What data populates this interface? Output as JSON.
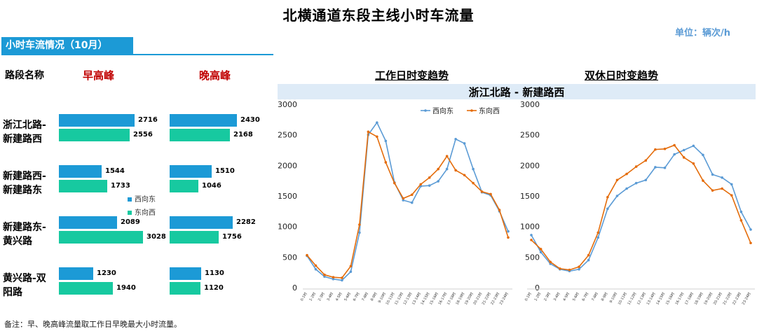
{
  "title": "北横通道东段主线小时车流量",
  "unit": "单位：辆次/h",
  "section_label": "小时车流情况（10月）",
  "table": {
    "col_road": "路段名称",
    "col_am": "早高峰",
    "col_pm": "晚高峰",
    "segments": [
      {
        "name_line1": "浙江北路-",
        "name_line2": "新建路西",
        "am_west": 2716,
        "am_east": 2556,
        "pm_west": 2430,
        "pm_east": 2168
      },
      {
        "name_line1": "新建路西-",
        "name_line2": "新建路东",
        "am_west": 1544,
        "am_east": 1733,
        "pm_west": 1510,
        "pm_east": 1046
      },
      {
        "name_line1": "新建路东-",
        "name_line2": "黄兴路",
        "am_west": 2089,
        "am_east": 3028,
        "pm_west": 2282,
        "pm_east": 1756
      },
      {
        "name_line1": "黄兴路-双",
        "name_line2": "阳路",
        "am_west": 1230,
        "am_east": 1940,
        "pm_west": 1130,
        "pm_east": 1120
      }
    ],
    "legend": {
      "west": "西向东",
      "east": "东向西"
    }
  },
  "segment_band_label": "浙江北路 - 新建路西",
  "footnote": "备注：早、晚高峰流量取工作日早晚最大小时流量。",
  "colors": {
    "west": "#1c9ad6",
    "east": "#17c9a0",
    "line_west": "#5b9bd5",
    "line_east": "#e46c0a",
    "peak": "#c00000"
  },
  "chart_data": [
    {
      "type": "line",
      "title": "工作日时变趋势",
      "x": [
        "0-1时",
        "1-2时",
        "2-3时",
        "3-4时",
        "4-5时",
        "5-6时",
        "6-7时",
        "7-8时",
        "8-9时",
        "9-10时",
        "10-11时",
        "11-12时",
        "12-13时",
        "13-14时",
        "14-15时",
        "15-16时",
        "16-17时",
        "17-18时",
        "18-19时",
        "19-20时",
        "20-21时",
        "21-22时",
        "22-23时",
        "23-24时"
      ],
      "ylim": [
        0,
        3000
      ],
      "yticks": [
        0,
        500,
        1000,
        1500,
        2000,
        2500,
        3000
      ],
      "legend_position": "top",
      "series": [
        {
          "name": "西向东",
          "values": [
            520,
            300,
            180,
            140,
            120,
            260,
            900,
            2500,
            2700,
            2400,
            1720,
            1430,
            1390,
            1660,
            1670,
            1740,
            1940,
            2430,
            2360,
            1940,
            1560,
            1510,
            1250,
            920
          ]
        },
        {
          "name": "东向西",
          "values": [
            530,
            360,
            210,
            170,
            160,
            350,
            1030,
            2550,
            2470,
            2050,
            1710,
            1460,
            1520,
            1690,
            1800,
            1940,
            2150,
            1920,
            1840,
            1710,
            1570,
            1530,
            1270,
            820
          ]
        }
      ]
    },
    {
      "type": "line",
      "title": "双休日时变趋势",
      "x": [
        "0-1时",
        "1-2时",
        "2-3时",
        "3-4时",
        "4-5时",
        "5-6时",
        "6-7时",
        "7-8时",
        "8-9时",
        "9-10时",
        "10-11时",
        "11-12时",
        "12-13时",
        "13-14时",
        "14-15时",
        "15-16时",
        "16-17时",
        "17-18时",
        "18-19时",
        "19-20时",
        "20-21时",
        "21-22时",
        "22-23时",
        "23-24时"
      ],
      "ylim": [
        0,
        3000
      ],
      "yticks": [
        0,
        500,
        1000,
        1500,
        2000,
        2500,
        3000
      ],
      "series": [
        {
          "name": "西向东",
          "values": [
            860,
            580,
            390,
            300,
            270,
            300,
            450,
            820,
            1290,
            1500,
            1620,
            1710,
            1760,
            1970,
            1960,
            2180,
            2250,
            2320,
            2170,
            1850,
            1800,
            1690,
            1240,
            950
          ]
        },
        {
          "name": "东向西",
          "values": [
            780,
            630,
            420,
            310,
            290,
            340,
            530,
            900,
            1480,
            1760,
            1860,
            1980,
            2080,
            2260,
            2270,
            2330,
            2130,
            2030,
            1750,
            1590,
            1620,
            1510,
            1100,
            730
          ]
        }
      ]
    }
  ]
}
